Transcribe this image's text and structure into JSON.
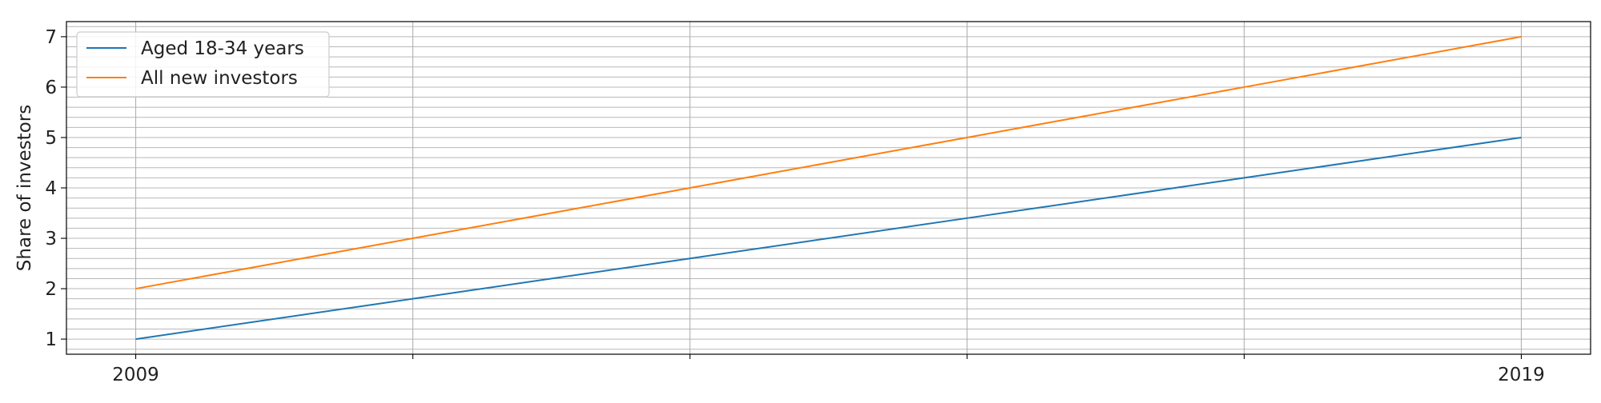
{
  "chart_data": {
    "type": "line",
    "title": "",
    "xlabel": "",
    "ylabel": "Share of investors",
    "x": [
      2009,
      2011,
      2013,
      2015,
      2017,
      2019
    ],
    "xticks": [
      2009,
      2019
    ],
    "xlim": [
      2008.5,
      2019.5
    ],
    "ylim": [
      0.7,
      7.3
    ],
    "yticks": [
      1,
      2,
      3,
      4,
      5,
      6,
      7
    ],
    "grid": {
      "major_x": true,
      "minor_y": true
    },
    "legend": {
      "placement": "top-left"
    },
    "series": [
      {
        "name": "Aged 18-34 years",
        "color": "#1f77b4",
        "values": [
          1.0,
          1.8,
          2.6,
          3.4,
          4.2,
          5.0
        ]
      },
      {
        "name": "All new investors",
        "color": "#ff7f0e",
        "values": [
          2.0,
          3.0,
          4.0,
          5.0,
          6.0,
          7.0
        ]
      }
    ]
  }
}
